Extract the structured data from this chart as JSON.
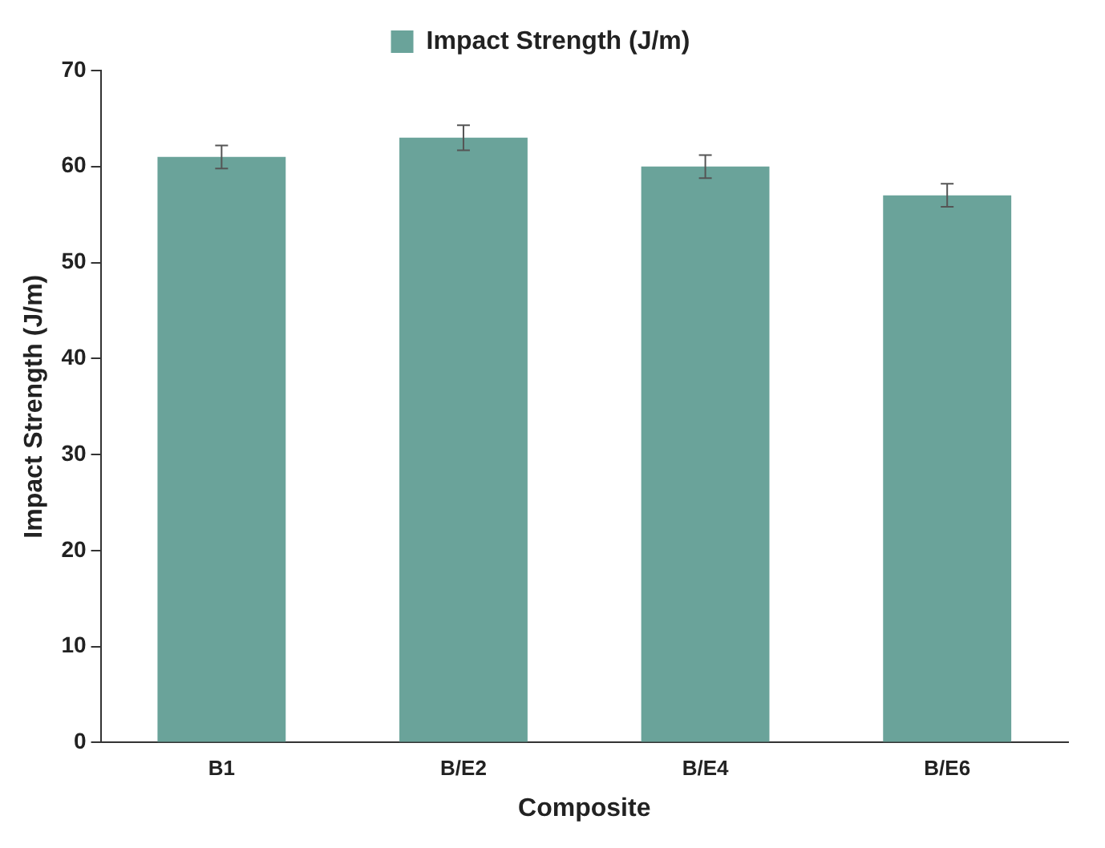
{
  "chart_data": {
    "type": "bar",
    "xlabel": "Composite",
    "ylabel": "Impact Strength (J/m)",
    "categories": [
      "B1",
      "B/E2",
      "B/E4",
      "B/E6"
    ],
    "series": [
      {
        "name": "Impact Strength (J/m)",
        "color": "#6aa39a",
        "values": [
          61,
          63,
          60,
          57
        ],
        "errors": [
          1.2,
          1.3,
          1.2,
          1.2
        ]
      }
    ],
    "ylim": [
      0,
      70
    ],
    "yticks": [
      0,
      10,
      20,
      30,
      40,
      50,
      60,
      70
    ],
    "grid": false,
    "legend": "top"
  }
}
